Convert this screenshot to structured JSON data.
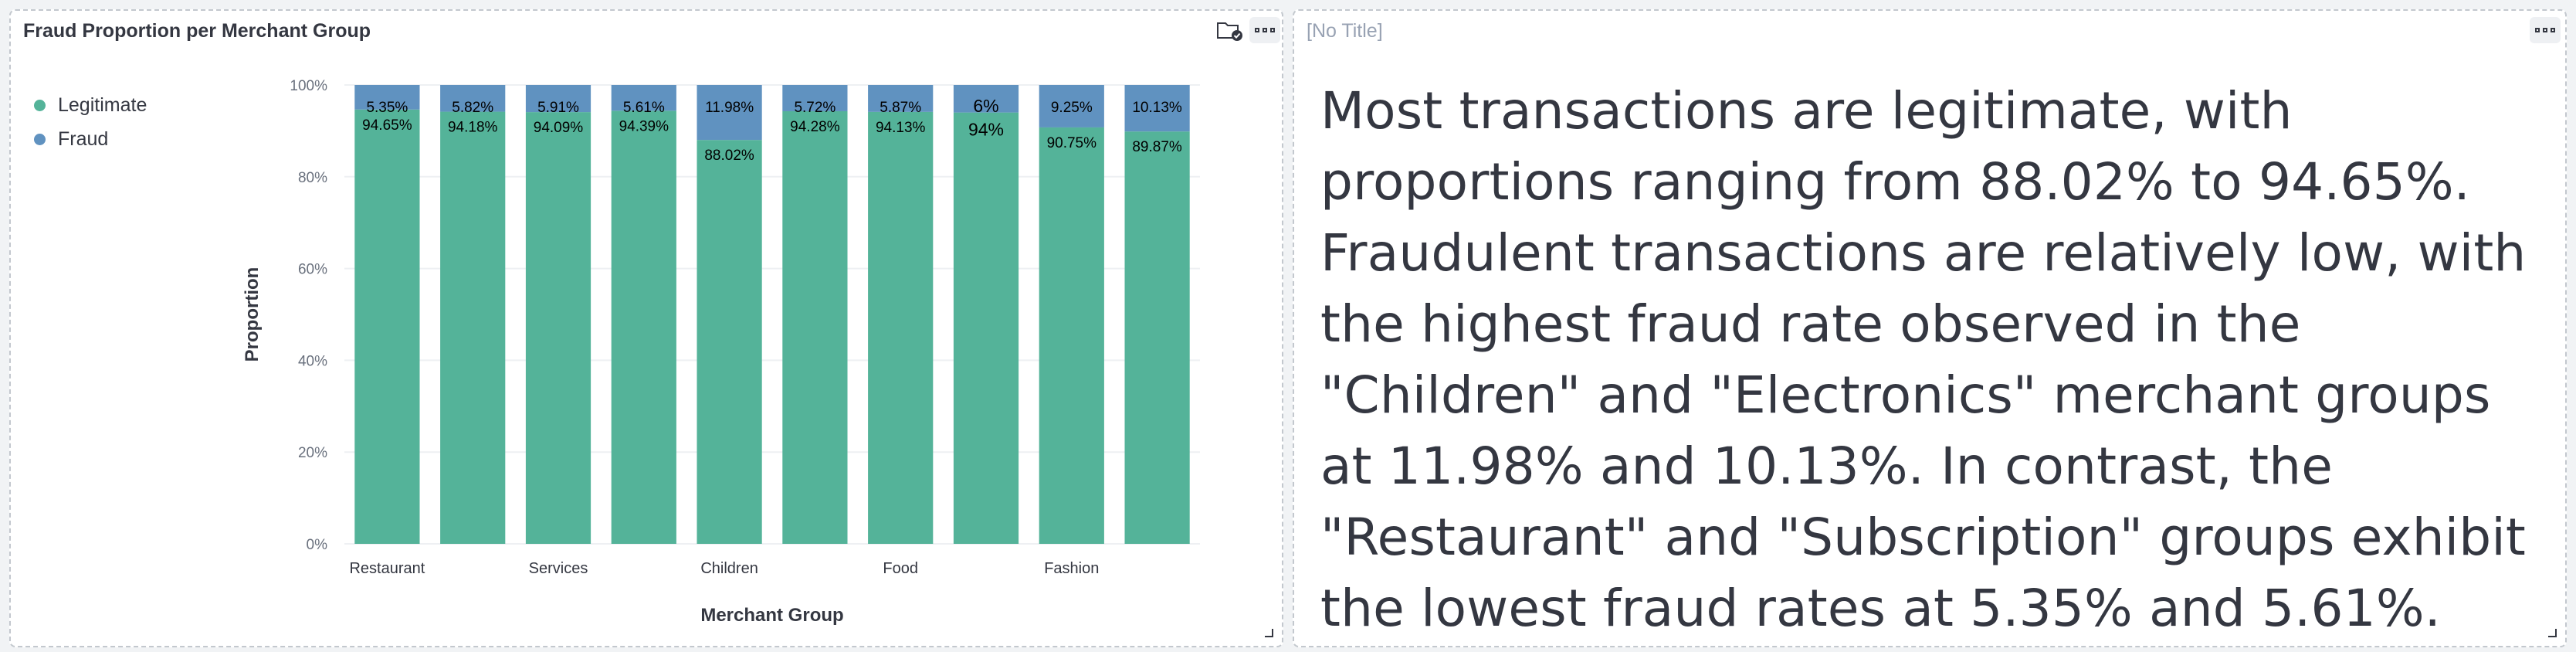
{
  "chart_panel": {
    "title": "Fraud Proportion per Merchant Group"
  },
  "text_panel": {
    "title": "[No Title]",
    "body": "Most transactions are legitimate, with proportions ranging from 88.02% to 94.65%. Fraudulent transactions are relatively low, with the highest fraud rate observed in the \"Children\" and \"Electronics\" merchant groups at 11.98% and 10.13%. In contrast, the \"Restaurant\" and \"Subscription\" groups exhibit the lowest fraud rates at 5.35% and 5.61%."
  },
  "icons": {
    "menu": "more-horizontal-icon",
    "folder": "folder-check-icon",
    "resize": "resize-handle-icon"
  },
  "colors": {
    "legitimate": "#54b399",
    "fraud": "#6092c0",
    "grid": "#eef0f3",
    "text": "#343741"
  },
  "chart_data": {
    "type": "bar",
    "stacked": true,
    "xlabel": "Merchant Group",
    "ylabel": "Proportion",
    "ylim": [
      0,
      100
    ],
    "yticks": [
      "0%",
      "20%",
      "40%",
      "60%",
      "80%",
      "100%"
    ],
    "x_tick_labels": [
      "Restaurant",
      "",
      "Services",
      "",
      "Children",
      "",
      "Food",
      "",
      "Fashion",
      ""
    ],
    "legend_position": "top-left",
    "series": [
      {
        "name": "Legitimate",
        "values": [
          94.65,
          94.18,
          94.09,
          94.39,
          88.02,
          94.28,
          94.13,
          94,
          90.75,
          89.87
        ],
        "labels": [
          "94.65%",
          "94.18%",
          "94.09%",
          "94.39%",
          "88.02%",
          "94.28%",
          "94.13%",
          "94%",
          "90.75%",
          "89.87%"
        ]
      },
      {
        "name": "Fraud",
        "values": [
          5.35,
          5.82,
          5.91,
          5.61,
          11.98,
          5.72,
          5.87,
          6,
          9.25,
          10.13
        ],
        "labels": [
          "5.35%",
          "5.82%",
          "5.91%",
          "5.61%",
          "11.98%",
          "5.72%",
          "5.87%",
          "6%",
          "9.25%",
          "10.13%"
        ]
      }
    ]
  }
}
